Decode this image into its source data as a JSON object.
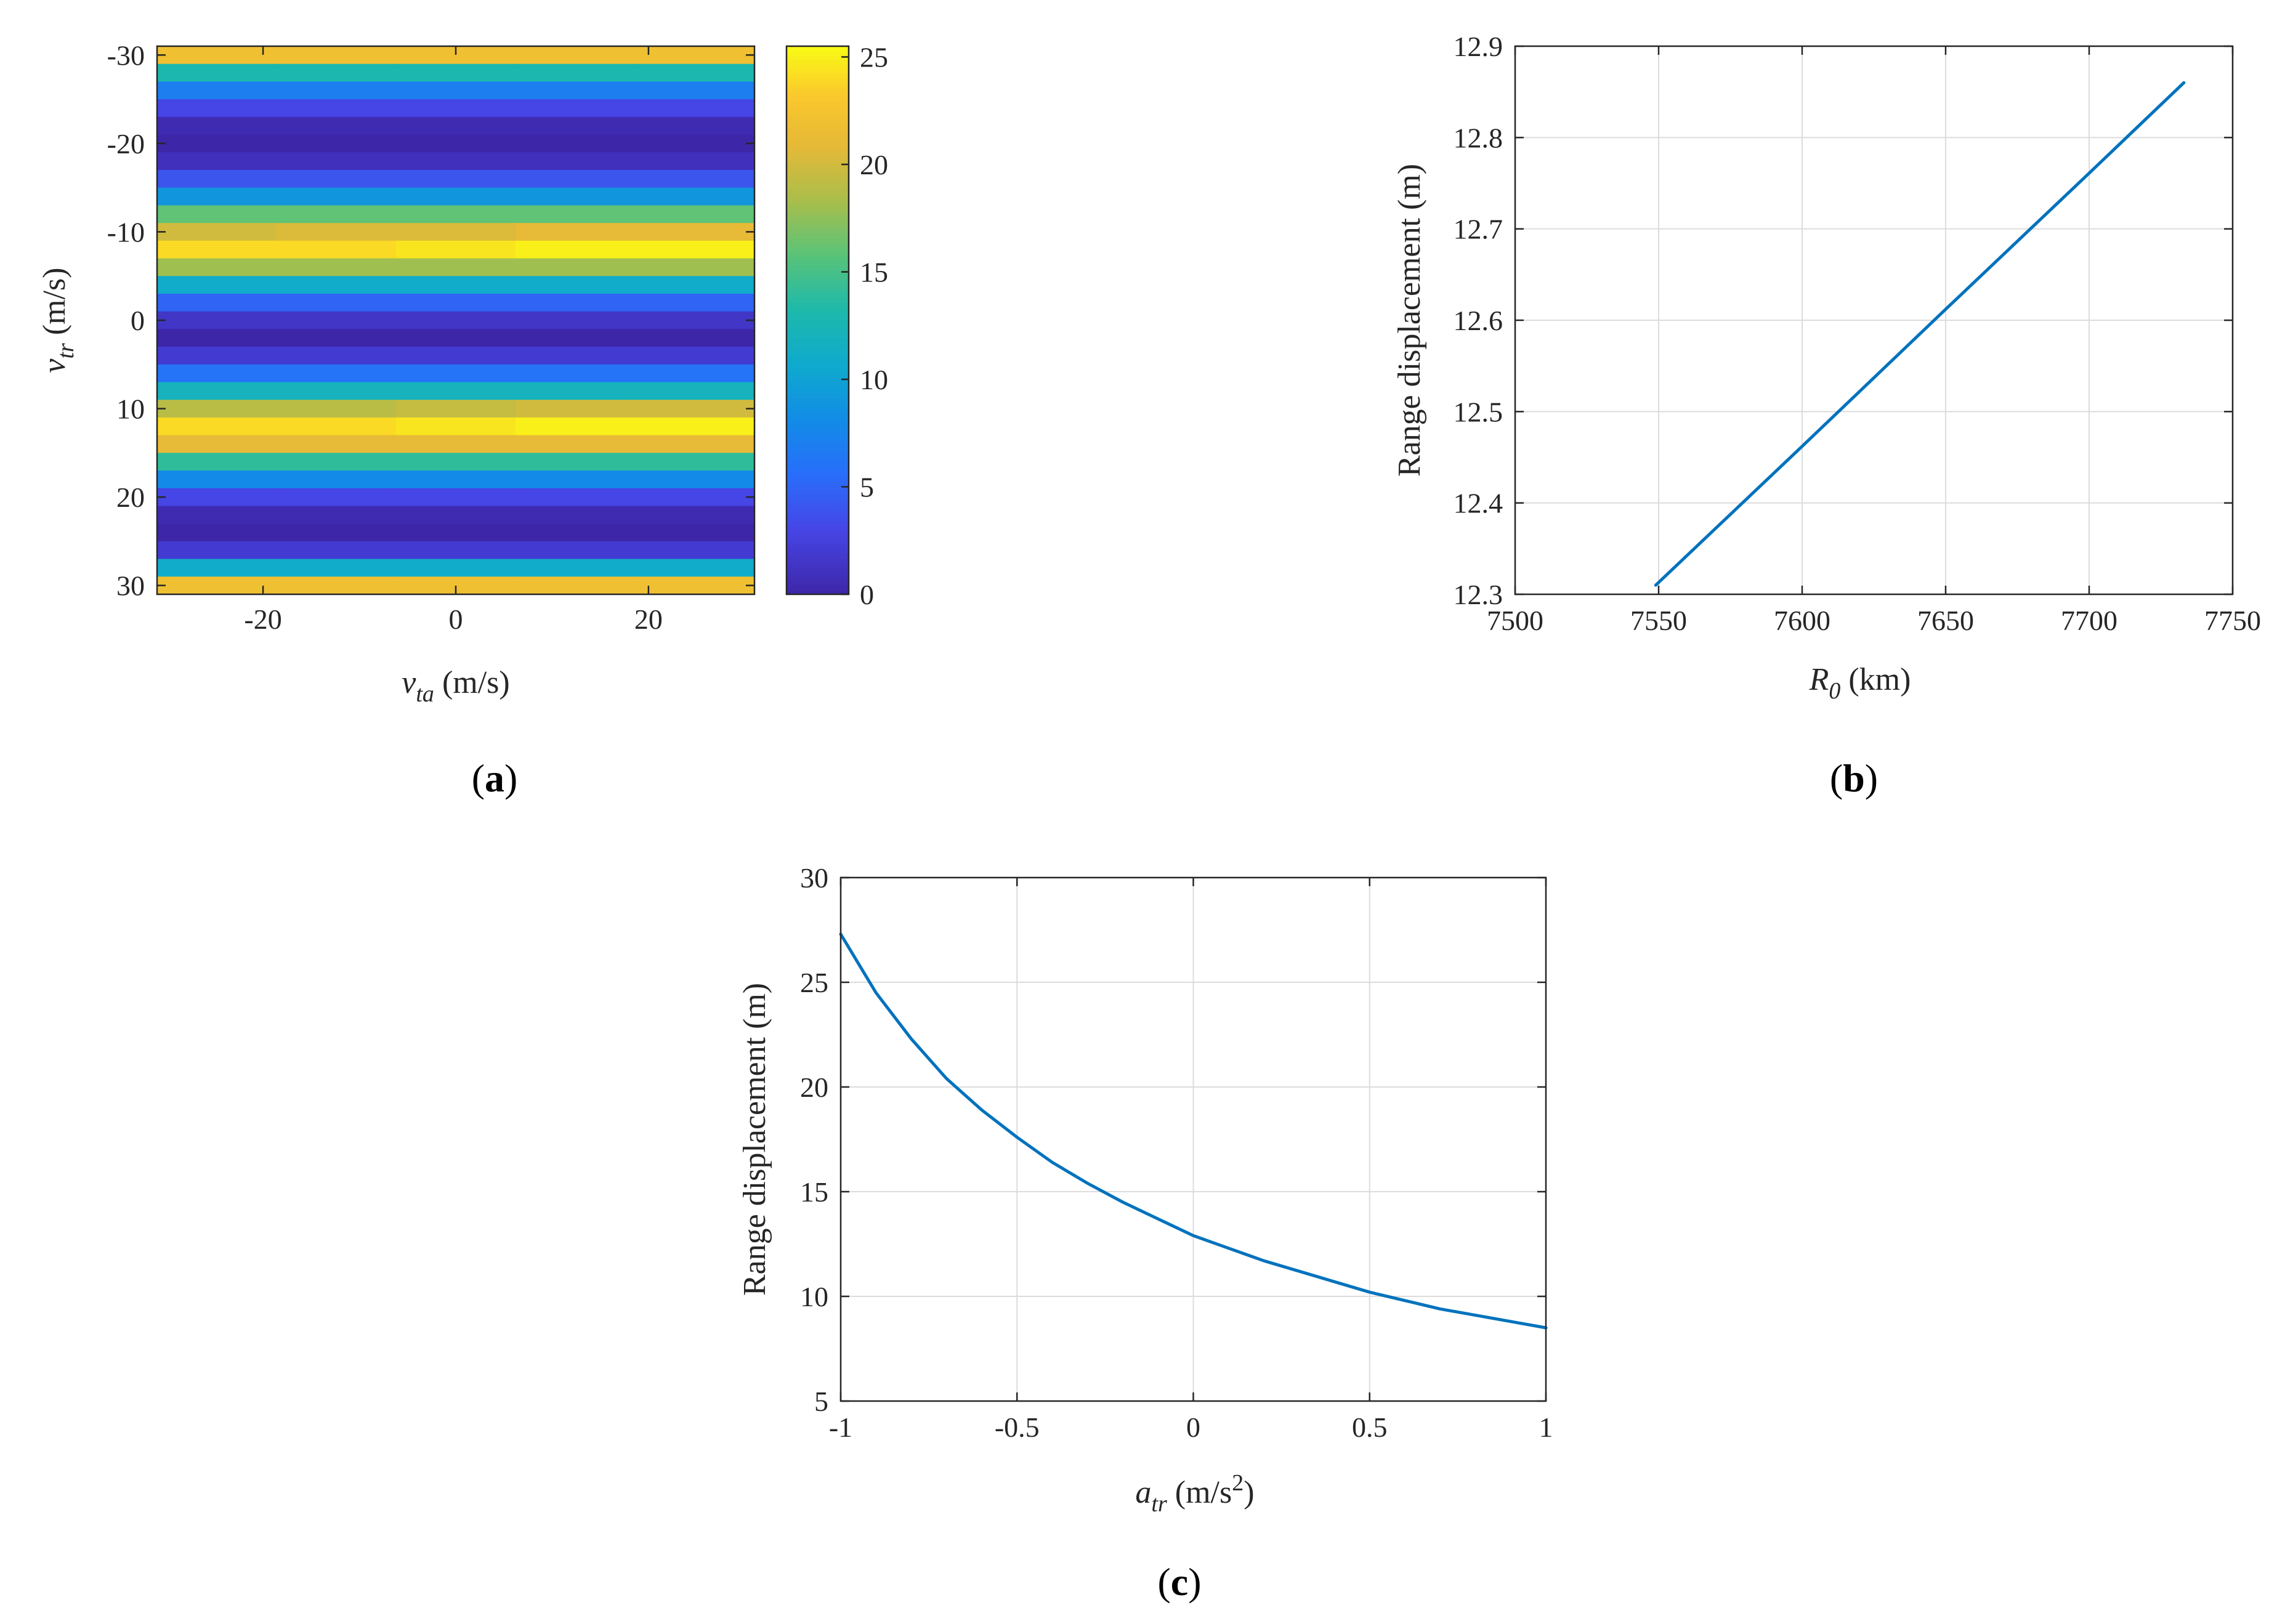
{
  "chart_data": [
    {
      "id": "a",
      "type": "heatmap",
      "caption_letter": "a",
      "title": "",
      "xlabel": {
        "main": "v",
        "sub": "ta",
        "unit": " (m/s)"
      },
      "ylabel": {
        "main": "v",
        "sub": "tr",
        "unit": " (m/s)"
      },
      "xlim": [
        -31,
        31
      ],
      "ylim": [
        -31,
        31
      ],
      "y_reversed": true,
      "xticks": [
        -20,
        0,
        20
      ],
      "xtick_labels": [
        "-20",
        "0",
        "20"
      ],
      "yticks": [
        -30,
        -20,
        -10,
        0,
        10,
        20,
        30
      ],
      "ytick_labels": [
        "-30",
        "-20",
        "-10",
        "0",
        "10",
        "20",
        "30"
      ],
      "colorbar": {
        "range": [
          0,
          25.5
        ],
        "ticks": [
          0,
          5,
          10,
          15,
          20,
          25
        ],
        "tick_labels": [
          "0",
          "5",
          "10",
          "15",
          "20",
          "25"
        ],
        "colormap": "parula"
      },
      "rows": [
        {
          "y": -30,
          "v": [
            22,
            22,
            22,
            22,
            22
          ]
        },
        {
          "y": -28,
          "v": [
            13,
            13,
            13,
            13,
            13
          ]
        },
        {
          "y": -26,
          "v": [
            7,
            7,
            7,
            7,
            7
          ]
        },
        {
          "y": -24,
          "v": [
            3,
            3,
            3,
            3,
            3
          ]
        },
        {
          "y": -22,
          "v": [
            0.5,
            0.5,
            0.5,
            0.5,
            0.5
          ]
        },
        {
          "y": -20,
          "v": [
            0,
            0,
            0,
            0,
            0
          ]
        },
        {
          "y": -18,
          "v": [
            1,
            1,
            1,
            1,
            1
          ]
        },
        {
          "y": -16,
          "v": [
            4,
            4,
            4,
            4,
            4
          ]
        },
        {
          "y": -14,
          "v": [
            9,
            9,
            9,
            9,
            9
          ]
        },
        {
          "y": -12,
          "v": [
            16,
            16,
            16,
            16,
            16
          ]
        },
        {
          "y": -10,
          "v": [
            20,
            20.5,
            20.5,
            21,
            21
          ]
        },
        {
          "y": -8,
          "v": [
            24,
            24,
            24.5,
            25,
            25
          ]
        },
        {
          "y": -6,
          "v": [
            18,
            18,
            18,
            18,
            18
          ]
        },
        {
          "y": -4,
          "v": [
            11,
            11,
            11,
            11,
            11
          ]
        },
        {
          "y": -2,
          "v": [
            5,
            5,
            5,
            5,
            5
          ]
        },
        {
          "y": 0,
          "v": [
            1.5,
            1.5,
            1.5,
            1.5,
            1.5
          ]
        },
        {
          "y": 2,
          "v": [
            0,
            0,
            0,
            0,
            0
          ]
        },
        {
          "y": 4,
          "v": [
            2,
            2,
            2,
            2,
            2
          ]
        },
        {
          "y": 6,
          "v": [
            6,
            6,
            6,
            6,
            6
          ]
        },
        {
          "y": 8,
          "v": [
            12,
            12,
            12,
            12,
            12
          ]
        },
        {
          "y": 10,
          "v": [
            19,
            19,
            19.5,
            20,
            20
          ]
        },
        {
          "y": 12,
          "v": [
            24,
            24,
            24.5,
            25,
            25
          ]
        },
        {
          "y": 14,
          "v": [
            21,
            21,
            21,
            21,
            21
          ]
        },
        {
          "y": 16,
          "v": [
            14,
            14,
            14,
            14,
            14
          ]
        },
        {
          "y": 18,
          "v": [
            8,
            8,
            8,
            8,
            8
          ]
        },
        {
          "y": 20,
          "v": [
            3,
            3,
            3,
            3,
            3
          ]
        },
        {
          "y": 22,
          "v": [
            0.5,
            0.5,
            0.5,
            0.5,
            0.5
          ]
        },
        {
          "y": 24,
          "v": [
            0,
            0,
            0,
            0,
            0
          ]
        },
        {
          "y": 26,
          "v": [
            2,
            2,
            2,
            2,
            2
          ]
        },
        {
          "y": 28,
          "v": [
            11,
            11,
            11,
            11,
            11
          ]
        },
        {
          "y": 30,
          "v": [
            22,
            22,
            22,
            22,
            22
          ]
        }
      ],
      "x_cols": [
        -24.8,
        -12.4,
        0,
        12.4,
        24.8
      ]
    },
    {
      "id": "b",
      "type": "line",
      "caption_letter": "b",
      "title": "",
      "xlabel": {
        "main": "R",
        "sub": "0",
        "unit": " (km)"
      },
      "ylabel": {
        "text": "Range displacement (m)"
      },
      "xlim": [
        7500,
        7750
      ],
      "ylim": [
        12.3,
        12.9
      ],
      "grid": true,
      "xticks": [
        7500,
        7550,
        7600,
        7650,
        7700,
        7750
      ],
      "xtick_labels": [
        "7500",
        "7550",
        "7600",
        "7650",
        "7700",
        "7750"
      ],
      "yticks": [
        12.3,
        12.4,
        12.5,
        12.6,
        12.7,
        12.8,
        12.9
      ],
      "ytick_labels": [
        "12.3",
        "12.4",
        "12.5",
        "12.6",
        "12.7",
        "12.8",
        "12.9"
      ],
      "series": [
        {
          "name": "displacement",
          "color": "#0072BD",
          "x": [
            7549,
            7600,
            7650,
            7700,
            7733
          ],
          "y": [
            12.31,
            12.462,
            12.612,
            12.761,
            12.86
          ]
        }
      ]
    },
    {
      "id": "c",
      "type": "line",
      "caption_letter": "c",
      "title": "",
      "xlabel": {
        "main": "a",
        "sub": "tr",
        "unit": " (m/s",
        "sup": "2",
        "close": ")"
      },
      "ylabel": {
        "text": "Range displacement (m)"
      },
      "xlim": [
        -1,
        1
      ],
      "ylim": [
        5,
        30
      ],
      "grid": true,
      "xticks": [
        -1,
        -0.5,
        0,
        0.5,
        1
      ],
      "xtick_labels": [
        "-1",
        "-0.5",
        "0",
        "0.5",
        "1"
      ],
      "yticks": [
        5,
        10,
        15,
        20,
        25,
        30
      ],
      "ytick_labels": [
        "5",
        "10",
        "15",
        "20",
        "25",
        "30"
      ],
      "series": [
        {
          "name": "displacement",
          "color": "#0072BD",
          "x": [
            -1,
            -0.9,
            -0.8,
            -0.7,
            -0.6,
            -0.5,
            -0.4,
            -0.3,
            -0.2,
            -0.1,
            0,
            0.1,
            0.2,
            0.3,
            0.4,
            0.5,
            0.6,
            0.7,
            0.8,
            0.9,
            1
          ],
          "y": [
            27.3,
            24.5,
            22.3,
            20.4,
            18.9,
            17.6,
            16.4,
            15.4,
            14.5,
            13.7,
            12.9,
            12.3,
            11.7,
            11.2,
            10.7,
            10.2,
            9.8,
            9.4,
            9.1,
            8.8,
            8.5
          ]
        }
      ]
    }
  ]
}
